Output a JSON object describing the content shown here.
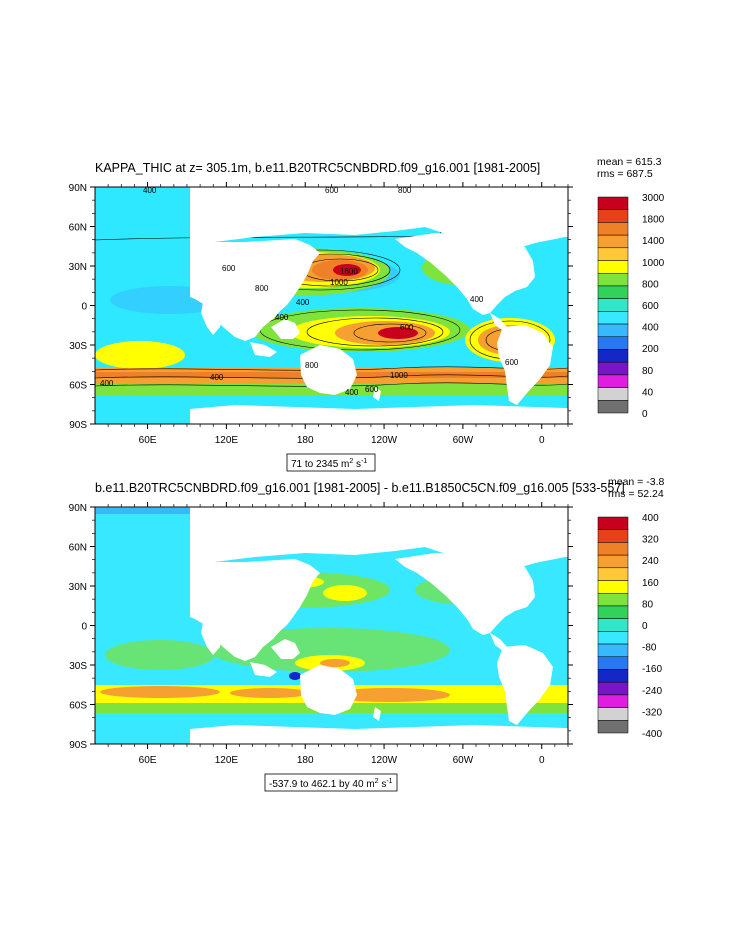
{
  "panels": [
    {
      "title": "KAPPA_THIC at z= 305.1m, b.e11.B20TRC5CNBDRD.f09_g16.001 [1981-2005]",
      "stats": {
        "mean": "mean = 615.3",
        "rms": "rms = 687.5"
      },
      "range_label": "71 to 2345",
      "units_label": " m",
      "units_exp1": "2",
      "units_mid": " s",
      "units_exp2": "-1",
      "lat_ticks": [
        "90N",
        "60N",
        "30N",
        "0",
        "30S",
        "60S",
        "90S"
      ],
      "lon_ticks": [
        "60E",
        "120E",
        "180",
        "120W",
        "60W",
        "0"
      ],
      "colorbar": {
        "labels": [
          "3000",
          "1800",
          "1400",
          "1000",
          "800",
          "600",
          "400",
          "200",
          "80",
          "40",
          "0"
        ],
        "colors": [
          "#c8001e",
          "#e8401a",
          "#f08028",
          "#f5a030",
          "#ffc838",
          "#ffff00",
          "#7ee33c",
          "#32d25a",
          "#2ee8c8",
          "#38e8ff",
          "#38b8ff",
          "#2878f0",
          "#1428c8",
          "#7a14c8",
          "#e01ee0",
          "#d2d2d2",
          "#707070"
        ]
      },
      "contour_labels": [
        "400",
        "600",
        "800",
        "1000",
        "1600",
        "800",
        "600",
        "400",
        "400",
        "600",
        "400",
        "600",
        "400",
        "800",
        "400",
        "1000",
        "600",
        "400"
      ]
    },
    {
      "title": "b.e11.B20TRC5CNBDRD.f09_g16.001 [1981-2005] - b.e11.B1850C5CN.f09_g16.005 [533-557]",
      "stats": {
        "mean": "mean = -3.8",
        "rms": "rms = 52.24"
      },
      "range_label": "-537.9 to 462.1 by 40",
      "units_label": " m",
      "units_exp1": "2",
      "units_mid": " s",
      "units_exp2": "-1",
      "lat_ticks": [
        "90N",
        "60N",
        "30N",
        "0",
        "30S",
        "60S",
        "90S"
      ],
      "lon_ticks": [
        "60E",
        "120E",
        "180",
        "120W",
        "60W",
        "0"
      ],
      "colorbar": {
        "labels": [
          "400",
          "320",
          "240",
          "160",
          "80",
          "0",
          "-80",
          "-160",
          "-240",
          "-320",
          "-400"
        ],
        "colors": [
          "#c8001e",
          "#e8401a",
          "#f08028",
          "#f5a030",
          "#ffc838",
          "#ffff00",
          "#7ee33c",
          "#32d25a",
          "#2ee8c8",
          "#38e8ff",
          "#38b8ff",
          "#2878f0",
          "#1428c8",
          "#7a14c8",
          "#e01ee0",
          "#d2d2d2",
          "#707070"
        ]
      }
    }
  ]
}
